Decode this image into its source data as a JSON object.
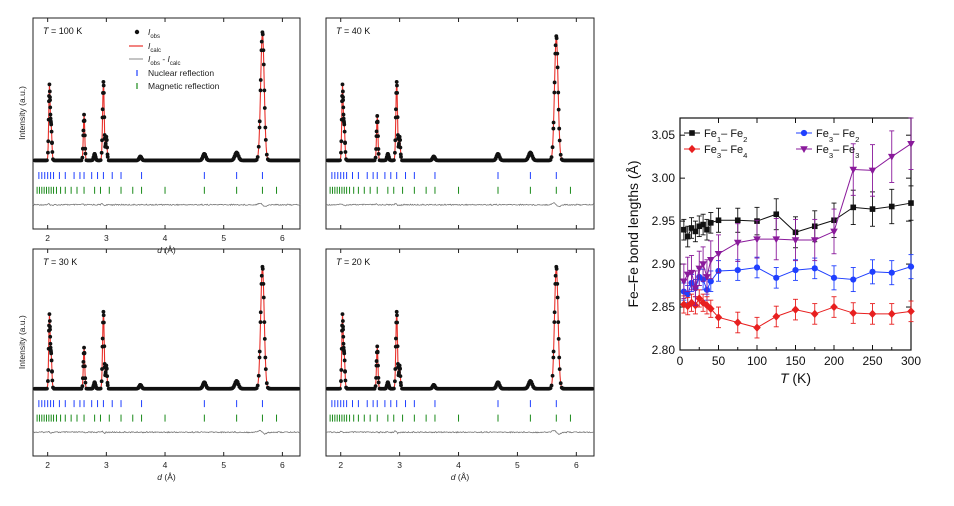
{
  "chart_data": [
    {
      "type": "scatter",
      "panel": "diffraction",
      "label_T": "T",
      "label_value": " = 100 K",
      "ylabel": "Intensity (a.u.)",
      "xlabel_var": "d",
      "xlabel_unit": " (Å)",
      "xlim": [
        1.75,
        6.3
      ],
      "xticks": [
        2,
        3,
        4,
        5,
        6
      ],
      "peaks": [
        {
          "d": 2.03,
          "h": 0.57,
          "w": 0.012
        },
        {
          "d": 2.06,
          "h": 0.25,
          "w": 0.012
        },
        {
          "d": 2.62,
          "h": 0.35,
          "w": 0.012
        },
        {
          "d": 2.8,
          "h": 0.05,
          "w": 0.015
        },
        {
          "d": 2.95,
          "h": 0.6,
          "w": 0.014
        },
        {
          "d": 3.0,
          "h": 0.18,
          "w": 0.012
        },
        {
          "d": 3.58,
          "h": 0.03,
          "w": 0.02
        },
        {
          "d": 4.67,
          "h": 0.05,
          "w": 0.025
        },
        {
          "d": 5.22,
          "h": 0.06,
          "w": 0.03
        },
        {
          "d": 5.66,
          "h": 0.98,
          "w": 0.03
        }
      ],
      "nuclear_reflections": [
        1.85,
        1.9,
        1.95,
        2.0,
        2.05,
        2.1,
        2.2,
        2.3,
        2.45,
        2.55,
        2.62,
        2.75,
        2.85,
        2.95,
        3.1,
        3.25,
        3.6,
        4.67,
        5.22,
        5.66
      ],
      "magnetic_reflections": [
        1.82,
        1.86,
        1.9,
        1.94,
        1.98,
        2.02,
        2.06,
        2.1,
        2.15,
        2.22,
        2.3,
        2.4,
        2.5,
        2.62,
        2.8,
        2.9,
        3.05,
        3.25,
        3.45,
        3.6,
        4.0,
        4.67,
        5.22,
        5.66,
        5.9
      ],
      "legend": {
        "obs_sym": "I",
        "obs_sub": "obs",
        "calc_sym": "I",
        "calc_sub": "calc",
        "diff_sym1": "I",
        "diff_sub1": "obs",
        "diff_minus": " - ",
        "diff_sym2": "I",
        "diff_sub2": "calc",
        "nuclear": "Nuclear reflection",
        "magnetic": "Magnetic reflection"
      }
    },
    {
      "type": "scatter",
      "panel": "diffraction",
      "label_T": "T",
      "label_value": " = 40 K",
      "ylabel": "",
      "xlabel_var": "",
      "xlabel_unit": "",
      "xlim": [
        1.75,
        6.3
      ],
      "xticks": [],
      "peaks": [
        {
          "d": 2.03,
          "h": 0.57,
          "w": 0.012
        },
        {
          "d": 2.06,
          "h": 0.25,
          "w": 0.012
        },
        {
          "d": 2.62,
          "h": 0.34,
          "w": 0.012
        },
        {
          "d": 2.8,
          "h": 0.05,
          "w": 0.015
        },
        {
          "d": 2.95,
          "h": 0.6,
          "w": 0.014
        },
        {
          "d": 3.0,
          "h": 0.18,
          "w": 0.012
        },
        {
          "d": 3.58,
          "h": 0.03,
          "w": 0.02
        },
        {
          "d": 4.67,
          "h": 0.05,
          "w": 0.025
        },
        {
          "d": 5.22,
          "h": 0.06,
          "w": 0.03
        },
        {
          "d": 5.66,
          "h": 0.95,
          "w": 0.03
        }
      ],
      "nuclear_reflections": [
        1.85,
        1.9,
        1.95,
        2.0,
        2.05,
        2.1,
        2.2,
        2.3,
        2.45,
        2.55,
        2.62,
        2.75,
        2.85,
        2.95,
        3.1,
        3.25,
        3.6,
        4.67,
        5.22,
        5.66
      ],
      "magnetic_reflections": [
        1.82,
        1.86,
        1.9,
        1.94,
        1.98,
        2.02,
        2.06,
        2.1,
        2.15,
        2.22,
        2.3,
        2.4,
        2.5,
        2.62,
        2.8,
        2.9,
        3.05,
        3.25,
        3.45,
        3.6,
        4.0,
        4.67,
        5.22,
        5.66,
        5.9
      ]
    },
    {
      "type": "scatter",
      "panel": "diffraction",
      "label_T": "T",
      "label_value": " = 30 K",
      "ylabel": "Intensity (a.u.)",
      "xlabel_var": "d",
      "xlabel_unit": " (Å)",
      "xlim": [
        1.75,
        6.3
      ],
      "xticks": [
        2,
        3,
        4,
        5,
        6
      ],
      "peaks": [
        {
          "d": 2.03,
          "h": 0.57,
          "w": 0.012
        },
        {
          "d": 2.06,
          "h": 0.25,
          "w": 0.012
        },
        {
          "d": 2.62,
          "h": 0.32,
          "w": 0.012
        },
        {
          "d": 2.8,
          "h": 0.05,
          "w": 0.015
        },
        {
          "d": 2.95,
          "h": 0.6,
          "w": 0.014
        },
        {
          "d": 3.0,
          "h": 0.18,
          "w": 0.012
        },
        {
          "d": 3.58,
          "h": 0.03,
          "w": 0.02
        },
        {
          "d": 4.67,
          "h": 0.05,
          "w": 0.025
        },
        {
          "d": 5.22,
          "h": 0.06,
          "w": 0.03
        },
        {
          "d": 5.66,
          "h": 0.95,
          "w": 0.03
        }
      ],
      "nuclear_reflections": [
        1.85,
        1.9,
        1.95,
        2.0,
        2.05,
        2.1,
        2.2,
        2.3,
        2.45,
        2.55,
        2.62,
        2.75,
        2.85,
        2.95,
        3.1,
        3.25,
        3.6,
        4.67,
        5.22,
        5.66
      ],
      "magnetic_reflections": [
        1.82,
        1.86,
        1.9,
        1.94,
        1.98,
        2.02,
        2.06,
        2.1,
        2.15,
        2.22,
        2.3,
        2.4,
        2.5,
        2.62,
        2.8,
        2.9,
        3.05,
        3.25,
        3.45,
        3.6,
        4.0,
        4.67,
        5.22,
        5.66,
        5.9
      ]
    },
    {
      "type": "scatter",
      "panel": "diffraction",
      "label_T": "T",
      "label_value": " = 20 K",
      "ylabel": "",
      "xlabel_var": "d",
      "xlabel_unit": " (Å)",
      "xlim": [
        1.75,
        6.3
      ],
      "xticks": [
        2,
        3,
        4,
        5,
        6
      ],
      "peaks": [
        {
          "d": 2.03,
          "h": 0.57,
          "w": 0.012
        },
        {
          "d": 2.06,
          "h": 0.25,
          "w": 0.012
        },
        {
          "d": 2.62,
          "h": 0.33,
          "w": 0.012
        },
        {
          "d": 2.8,
          "h": 0.05,
          "w": 0.015
        },
        {
          "d": 2.95,
          "h": 0.6,
          "w": 0.014
        },
        {
          "d": 3.0,
          "h": 0.18,
          "w": 0.012
        },
        {
          "d": 3.58,
          "h": 0.03,
          "w": 0.02
        },
        {
          "d": 4.67,
          "h": 0.05,
          "w": 0.025
        },
        {
          "d": 5.22,
          "h": 0.06,
          "w": 0.03
        },
        {
          "d": 5.66,
          "h": 0.95,
          "w": 0.03
        }
      ],
      "nuclear_reflections": [
        1.85,
        1.9,
        1.95,
        2.0,
        2.05,
        2.1,
        2.2,
        2.3,
        2.45,
        2.55,
        2.62,
        2.75,
        2.85,
        2.95,
        3.1,
        3.25,
        3.6,
        4.67,
        5.22,
        5.66
      ],
      "magnetic_reflections": [
        1.82,
        1.86,
        1.9,
        1.94,
        1.98,
        2.02,
        2.06,
        2.1,
        2.15,
        2.22,
        2.3,
        2.4,
        2.5,
        2.62,
        2.8,
        2.9,
        3.05,
        3.25,
        3.45,
        3.6,
        4.0,
        4.67,
        5.22,
        5.66,
        5.9
      ]
    },
    {
      "type": "line",
      "panel": "bond-lengths",
      "ylabel": "Fe–Fe bond lengths (Å)",
      "xlabel_var": "T",
      "xlabel_unit": " (K)",
      "xlim": [
        0,
        300
      ],
      "ylim": [
        2.8,
        3.07
      ],
      "xticks": [
        0,
        50,
        100,
        150,
        200,
        250,
        300
      ],
      "yticks": [
        2.8,
        2.85,
        2.9,
        2.95,
        3.0,
        3.05
      ],
      "ytick_labels": [
        "2.80",
        "2.85",
        "2.90",
        "2.95",
        "3.00",
        "3.05"
      ],
      "series": [
        {
          "name": "Fe1– Fe2",
          "el": "Fe",
          "s1": "1",
          "sep": "– ",
          "s2": "2",
          "color": "#111111",
          "marker": "square",
          "x": [
            5,
            10,
            15,
            20,
            25,
            30,
            35,
            40,
            50,
            75,
            100,
            125,
            150,
            175,
            200,
            225,
            250,
            275,
            300
          ],
          "y": [
            2.94,
            2.932,
            2.942,
            2.938,
            2.944,
            2.946,
            2.94,
            2.948,
            2.951,
            2.951,
            2.95,
            2.958,
            2.937,
            2.944,
            2.951,
            2.966,
            2.964,
            2.967,
            2.971
          ],
          "err": [
            0.012,
            0.012,
            0.012,
            0.012,
            0.012,
            0.012,
            0.012,
            0.012,
            0.014,
            0.014,
            0.016,
            0.018,
            0.018,
            0.018,
            0.02,
            0.02,
            0.02,
            0.02,
            0.02
          ]
        },
        {
          "name": "Fe3– Fe2",
          "el": "Fe",
          "s1": "3",
          "sep": "– ",
          "s2": "2",
          "color": "#1f3fff",
          "marker": "circle",
          "x": [
            5,
            10,
            15,
            20,
            25,
            30,
            35,
            40,
            50,
            75,
            100,
            125,
            150,
            175,
            200,
            225,
            250,
            275,
            300
          ],
          "y": [
            2.868,
            2.865,
            2.878,
            2.872,
            2.885,
            2.882,
            2.87,
            2.88,
            2.892,
            2.893,
            2.896,
            2.884,
            2.893,
            2.895,
            2.884,
            2.882,
            2.891,
            2.89,
            2.897
          ],
          "err": [
            0.01,
            0.01,
            0.01,
            0.01,
            0.01,
            0.012,
            0.012,
            0.012,
            0.012,
            0.012,
            0.012,
            0.012,
            0.012,
            0.012,
            0.014,
            0.014,
            0.014,
            0.014,
            0.014
          ]
        },
        {
          "name": "Fe3– Fe4",
          "el": "Fe",
          "s1": "3",
          "sep": "– ",
          "s2": "4",
          "color": "#e81f1f",
          "marker": "diamond",
          "x": [
            5,
            10,
            15,
            20,
            25,
            30,
            35,
            40,
            50,
            75,
            100,
            125,
            150,
            175,
            200,
            225,
            250,
            275,
            300
          ],
          "y": [
            2.853,
            2.851,
            2.855,
            2.852,
            2.86,
            2.855,
            2.852,
            2.848,
            2.838,
            2.832,
            2.826,
            2.839,
            2.847,
            2.842,
            2.85,
            2.843,
            2.842,
            2.842,
            2.845
          ],
          "err": [
            0.01,
            0.01,
            0.01,
            0.01,
            0.01,
            0.01,
            0.01,
            0.01,
            0.012,
            0.012,
            0.012,
            0.012,
            0.012,
            0.012,
            0.012,
            0.012,
            0.012,
            0.012,
            0.012
          ]
        },
        {
          "name": "Fe3– Fe3",
          "el": "Fe",
          "s1": "3",
          "sep": "– ",
          "s2": "3",
          "color": "#8a1a9b",
          "marker": "triangle-down",
          "x": [
            5,
            10,
            15,
            20,
            25,
            30,
            35,
            40,
            50,
            75,
            100,
            125,
            150,
            175,
            200,
            225,
            250,
            275,
            300
          ],
          "y": [
            2.88,
            2.888,
            2.89,
            2.872,
            2.895,
            2.9,
            2.885,
            2.905,
            2.912,
            2.925,
            2.929,
            2.929,
            2.928,
            2.928,
            2.938,
            3.01,
            3.009,
            3.025,
            3.04
          ],
          "err": [
            0.02,
            0.02,
            0.02,
            0.02,
            0.02,
            0.02,
            0.02,
            0.022,
            0.022,
            0.022,
            0.022,
            0.024,
            0.024,
            0.024,
            0.026,
            0.03,
            0.03,
            0.03,
            0.03
          ]
        }
      ]
    }
  ]
}
